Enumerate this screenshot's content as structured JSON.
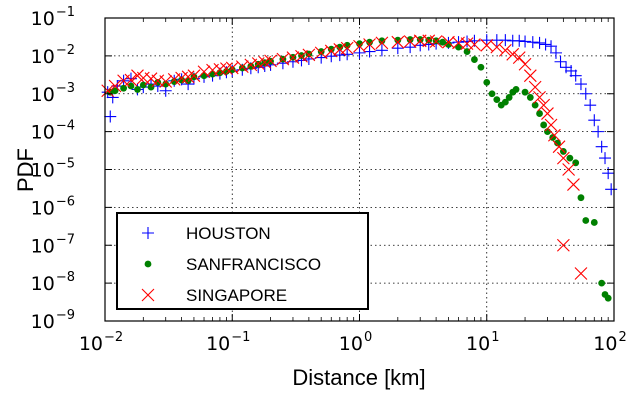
{
  "chart_data": {
    "type": "scatter",
    "xscale": "log",
    "yscale": "log",
    "xlabel": "Distance [km]",
    "ylabel": "PDF",
    "xlim": [
      0.01,
      100
    ],
    "ylim": [
      1e-09,
      0.1
    ],
    "xticks": [
      0.01,
      0.1,
      1,
      10,
      100
    ],
    "yticks": [
      1e-09,
      1e-08,
      1e-07,
      1e-06,
      1e-05,
      0.0001,
      0.001,
      0.01,
      0.1
    ],
    "grid": true,
    "legend_position": "lower-left",
    "series": [
      {
        "name": "HOUSTON",
        "marker": "plus",
        "color": "#0000ff",
        "points": [
          [
            0.0105,
            0.0011
          ],
          [
            0.011,
            0.00025
          ],
          [
            0.0115,
            0.0008
          ],
          [
            0.0125,
            0.0016
          ],
          [
            0.014,
            0.0022
          ],
          [
            0.016,
            0.0025
          ],
          [
            0.018,
            0.0013
          ],
          [
            0.02,
            0.0015
          ],
          [
            0.023,
            0.0018
          ],
          [
            0.026,
            0.0016
          ],
          [
            0.03,
            0.0012
          ],
          [
            0.035,
            0.0022
          ],
          [
            0.04,
            0.0024
          ],
          [
            0.045,
            0.0018
          ],
          [
            0.05,
            0.0025
          ],
          [
            0.06,
            0.0028
          ],
          [
            0.07,
            0.003
          ],
          [
            0.08,
            0.0034
          ],
          [
            0.09,
            0.0037
          ],
          [
            0.1,
            0.004
          ],
          [
            0.12,
            0.0043
          ],
          [
            0.14,
            0.0047
          ],
          [
            0.16,
            0.005
          ],
          [
            0.18,
            0.0054
          ],
          [
            0.2,
            0.0058
          ],
          [
            0.25,
            0.0064
          ],
          [
            0.3,
            0.007
          ],
          [
            0.35,
            0.0076
          ],
          [
            0.4,
            0.0083
          ],
          [
            0.5,
            0.009
          ],
          [
            0.6,
            0.0098
          ],
          [
            0.7,
            0.0105
          ],
          [
            0.8,
            0.011
          ],
          [
            1.0,
            0.012
          ],
          [
            1.2,
            0.013
          ],
          [
            1.5,
            0.014
          ],
          [
            2.0,
            0.016
          ],
          [
            2.5,
            0.017
          ],
          [
            3.0,
            0.019
          ],
          [
            3.5,
            0.02
          ],
          [
            4.0,
            0.021
          ],
          [
            5.0,
            0.022
          ],
          [
            6.0,
            0.023
          ],
          [
            7.0,
            0.024
          ],
          [
            8.0,
            0.025
          ],
          [
            10.0,
            0.026
          ],
          [
            12.0,
            0.026
          ],
          [
            14.0,
            0.026
          ],
          [
            16.0,
            0.025
          ],
          [
            18.0,
            0.025
          ],
          [
            20.0,
            0.024
          ],
          [
            23.0,
            0.023
          ],
          [
            26.0,
            0.022
          ],
          [
            29.0,
            0.02
          ],
          [
            32.0,
            0.018
          ],
          [
            35.0,
            0.012
          ],
          [
            38.0,
            0.007
          ],
          [
            42.0,
            0.005
          ],
          [
            46.0,
            0.004
          ],
          [
            50.0,
            0.003
          ],
          [
            55.0,
            0.0018
          ],
          [
            60.0,
            0.001
          ],
          [
            65.0,
            0.0005
          ],
          [
            70.0,
            0.0002
          ],
          [
            75.0,
            0.0001
          ],
          [
            80.0,
            4e-05
          ],
          [
            85.0,
            2e-05
          ],
          [
            90.0,
            8e-06
          ],
          [
            95.0,
            3e-06
          ]
        ]
      },
      {
        "name": "SANFRANCISCO",
        "marker": "dot",
        "color": "#008000",
        "points": [
          [
            0.011,
            0.0011
          ],
          [
            0.012,
            0.0012
          ],
          [
            0.014,
            0.0014
          ],
          [
            0.016,
            0.0016
          ],
          [
            0.018,
            0.0013
          ],
          [
            0.02,
            0.0017
          ],
          [
            0.023,
            0.0015
          ],
          [
            0.026,
            0.002
          ],
          [
            0.03,
            0.0018
          ],
          [
            0.035,
            0.0021
          ],
          [
            0.04,
            0.0023
          ],
          [
            0.045,
            0.0022
          ],
          [
            0.05,
            0.0028
          ],
          [
            0.06,
            0.003
          ],
          [
            0.07,
            0.0033
          ],
          [
            0.08,
            0.0036
          ],
          [
            0.09,
            0.0039
          ],
          [
            0.1,
            0.0043
          ],
          [
            0.12,
            0.0048
          ],
          [
            0.14,
            0.0053
          ],
          [
            0.16,
            0.006
          ],
          [
            0.18,
            0.0066
          ],
          [
            0.2,
            0.0072
          ],
          [
            0.25,
            0.0082
          ],
          [
            0.3,
            0.0092
          ],
          [
            0.35,
            0.0102
          ],
          [
            0.4,
            0.0112
          ],
          [
            0.5,
            0.013
          ],
          [
            0.6,
            0.015
          ],
          [
            0.7,
            0.017
          ],
          [
            0.8,
            0.019
          ],
          [
            1.0,
            0.021
          ],
          [
            1.2,
            0.023
          ],
          [
            1.5,
            0.025
          ],
          [
            2.0,
            0.026
          ],
          [
            2.5,
            0.027
          ],
          [
            3.0,
            0.027
          ],
          [
            3.5,
            0.026
          ],
          [
            4.0,
            0.025
          ],
          [
            4.5,
            0.023
          ],
          [
            5.0,
            0.02
          ],
          [
            6.0,
            0.017
          ],
          [
            7.0,
            0.013
          ],
          [
            8.0,
            0.008
          ],
          [
            9.0,
            0.005
          ],
          [
            10.0,
            0.002
          ],
          [
            11.0,
            0.001
          ],
          [
            12.0,
            0.0007
          ],
          [
            13.0,
            0.0005
          ],
          [
            14.0,
            0.0006
          ],
          [
            15.0,
            0.0008
          ],
          [
            16.0,
            0.0011
          ],
          [
            17.0,
            0.0013
          ],
          [
            20.0,
            0.0011
          ],
          [
            22.0,
            0.0008
          ],
          [
            24.0,
            0.0005
          ],
          [
            26.0,
            0.0003
          ],
          [
            28.0,
            0.00015
          ],
          [
            30.0,
            0.0001
          ],
          [
            33.0,
            7e-05
          ],
          [
            36.0,
            5e-05
          ],
          [
            40.0,
            3e-05
          ],
          [
            45.0,
            2e-05
          ],
          [
            50.0,
            1.5e-05
          ],
          [
            55.0,
            1.8e-06
          ],
          [
            60.0,
            4.5e-07
          ],
          [
            70.0,
            4e-07
          ],
          [
            80.0,
            1e-08
          ],
          [
            85.0,
            5e-09
          ],
          [
            90.0,
            4e-09
          ]
        ]
      },
      {
        "name": "SINGAPORE",
        "marker": "x",
        "color": "#ff0000",
        "points": [
          [
            0.0105,
            0.0012
          ],
          [
            0.012,
            0.0016
          ],
          [
            0.014,
            0.0022
          ],
          [
            0.016,
            0.0023
          ],
          [
            0.018,
            0.003
          ],
          [
            0.02,
            0.0026
          ],
          [
            0.023,
            0.0025
          ],
          [
            0.026,
            0.0022
          ],
          [
            0.03,
            0.0021
          ],
          [
            0.035,
            0.0024
          ],
          [
            0.04,
            0.0026
          ],
          [
            0.045,
            0.0028
          ],
          [
            0.05,
            0.003
          ],
          [
            0.06,
            0.0038
          ],
          [
            0.07,
            0.0042
          ],
          [
            0.08,
            0.0044
          ],
          [
            0.09,
            0.0046
          ],
          [
            0.1,
            0.0048
          ],
          [
            0.12,
            0.0052
          ],
          [
            0.14,
            0.0058
          ],
          [
            0.16,
            0.0063
          ],
          [
            0.18,
            0.0068
          ],
          [
            0.2,
            0.0074
          ],
          [
            0.25,
            0.0082
          ],
          [
            0.3,
            0.009
          ],
          [
            0.35,
            0.0098
          ],
          [
            0.4,
            0.0106
          ],
          [
            0.5,
            0.012
          ],
          [
            0.6,
            0.0135
          ],
          [
            0.7,
            0.0148
          ],
          [
            0.8,
            0.016
          ],
          [
            1.0,
            0.018
          ],
          [
            1.2,
            0.02
          ],
          [
            1.5,
            0.022
          ],
          [
            2.0,
            0.023
          ],
          [
            2.5,
            0.024
          ],
          [
            3.0,
            0.025
          ],
          [
            3.5,
            0.025
          ],
          [
            4.0,
            0.024
          ],
          [
            5.0,
            0.023
          ],
          [
            6.0,
            0.022
          ],
          [
            7.0,
            0.021
          ],
          [
            8.0,
            0.02
          ],
          [
            10.0,
            0.019
          ],
          [
            12.0,
            0.017
          ],
          [
            14.0,
            0.014
          ],
          [
            16.0,
            0.011
          ],
          [
            18.0,
            0.009
          ],
          [
            20.0,
            0.006
          ],
          [
            22.0,
            0.003
          ],
          [
            24.0,
            0.0015
          ],
          [
            26.0,
            0.0008
          ],
          [
            28.0,
            0.0005
          ],
          [
            30.0,
            0.0003
          ],
          [
            32.0,
            0.00015
          ],
          [
            34.0,
            8e-05
          ],
          [
            37.0,
            4e-05
          ],
          [
            40.0,
            2e-05
          ],
          [
            44.0,
            1e-05
          ],
          [
            48.0,
            4e-06
          ],
          [
            40.0,
            1e-07
          ],
          [
            55.0,
            1.8e-08
          ]
        ]
      }
    ]
  }
}
